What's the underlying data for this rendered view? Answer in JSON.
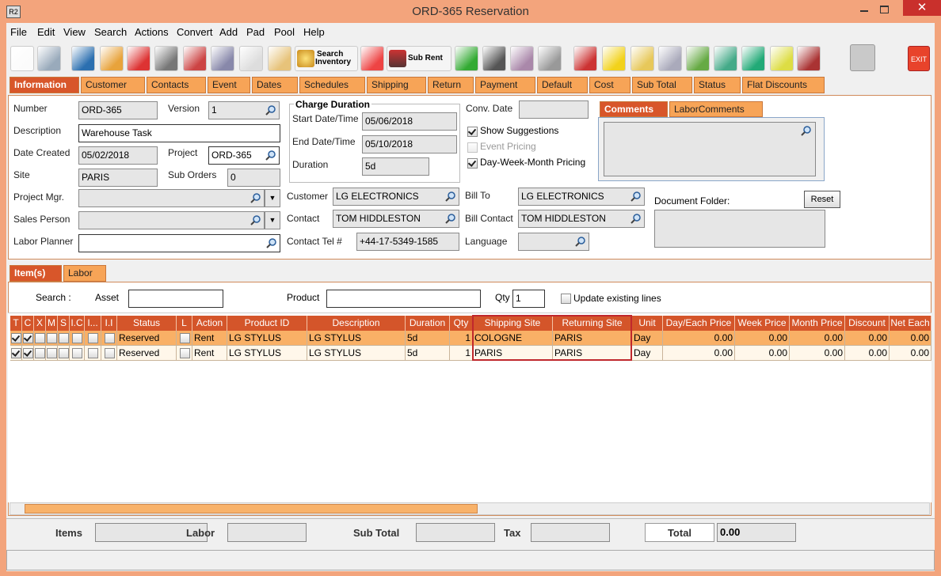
{
  "window": {
    "icon": "R2",
    "title": "ORD-365 Reservation"
  },
  "menu": [
    "File",
    "Edit",
    "View",
    "Search",
    "Actions",
    "Convert",
    "Add",
    "Pad",
    "Pool",
    "Help"
  ],
  "toolbar": {
    "search_inventory": [
      "Search",
      "Inventory"
    ],
    "sub_rent": "Sub Rent",
    "exit": "EXIT"
  },
  "tabs": [
    "Information",
    "Customer",
    "Contacts",
    "Event",
    "Dates",
    "Schedules",
    "Shipping",
    "Return",
    "Payment",
    "Default",
    "Cost",
    "Sub Total",
    "Status",
    "Flat Discounts"
  ],
  "information": {
    "number": {
      "label": "Number",
      "value": "ORD-365"
    },
    "version": {
      "label": "Version",
      "value": "1"
    },
    "description": {
      "label": "Description",
      "value": "Warehouse Task"
    },
    "date_created": {
      "label": "Date Created",
      "value": "05/02/2018"
    },
    "project": {
      "label": "Project",
      "value": "ORD-365"
    },
    "site": {
      "label": "Site",
      "value": "PARIS"
    },
    "sub_orders": {
      "label": "Sub Orders",
      "value": "0"
    },
    "project_mgr": {
      "label": "Project Mgr."
    },
    "sales_person": {
      "label": "Sales Person"
    },
    "labor_planner": {
      "label": "Labor Planner"
    },
    "customer": {
      "label": "Customer",
      "value": "LG ELECTRONICS"
    },
    "contact": {
      "label": "Contact",
      "value": "TOM HIDDLESTON"
    },
    "contact_tel": {
      "label": "Contact Tel #",
      "value": "+44-17-5349-1585"
    },
    "conv_date": {
      "label": "Conv. Date"
    },
    "bill_to": {
      "label": "Bill To",
      "value": "LG ELECTRONICS"
    },
    "bill_contact": {
      "label": "Bill Contact",
      "value": "TOM HIDDLESTON"
    },
    "language": {
      "label": "Language"
    }
  },
  "charge_duration": {
    "title": "Charge Duration",
    "start": {
      "label": "Start Date/Time",
      "value": "05/06/2018"
    },
    "end": {
      "label": "End Date/Time",
      "value": "05/10/2018"
    },
    "duration": {
      "label": "Duration",
      "value": "5d"
    }
  },
  "options": [
    {
      "label": "Show Suggestions",
      "checked": true,
      "enabled": true
    },
    {
      "label": "Event Pricing",
      "checked": false,
      "enabled": false
    },
    {
      "label": "Day-Week-Month Pricing",
      "checked": true,
      "enabled": true
    }
  ],
  "comment_tabs": [
    "Comments",
    "LaborComments"
  ],
  "document_folder": {
    "label": "Document Folder:",
    "button": "Reset"
  },
  "item_tabs": [
    "Item(s)",
    "Labor"
  ],
  "search": {
    "label": "Search :",
    "asset": "Asset",
    "product": "Product",
    "qty_label": "Qty",
    "qty": "1",
    "update_label": "Update existing lines",
    "update_checked": false
  },
  "table": {
    "columns": [
      "T",
      "C",
      "X",
      "M",
      "S",
      "I.C",
      "I...",
      "I.I",
      "Status",
      "L",
      "Action",
      "Product ID",
      "Description",
      "Duration",
      "Qty",
      "Shipping Site",
      "Returning Site",
      "Unit",
      "Day/Each Price",
      "Week Price",
      "Month Price",
      "Discount",
      "Net Each"
    ],
    "rows": [
      [
        true,
        true,
        false,
        false,
        false,
        false,
        false,
        false,
        "Reserved",
        false,
        "Rent",
        "LG STYLUS",
        "LG STYLUS",
        "5d",
        "1",
        "COLOGNE",
        "PARIS",
        "Day",
        "0.00",
        "0.00",
        "0.00",
        "0.00",
        "0.00"
      ],
      [
        true,
        true,
        false,
        false,
        false,
        false,
        false,
        false,
        "Reserved",
        false,
        "Rent",
        "LG STYLUS",
        "LG STYLUS",
        "5d",
        "1",
        "PARIS",
        "PARIS",
        "Day",
        "0.00",
        "0.00",
        "0.00",
        "0.00",
        "0.00"
      ]
    ]
  },
  "totals": {
    "items": "Items",
    "labor": "Labor",
    "sub_total": "Sub Total",
    "tax": "Tax",
    "total": "Total",
    "total_value": "0.00"
  }
}
